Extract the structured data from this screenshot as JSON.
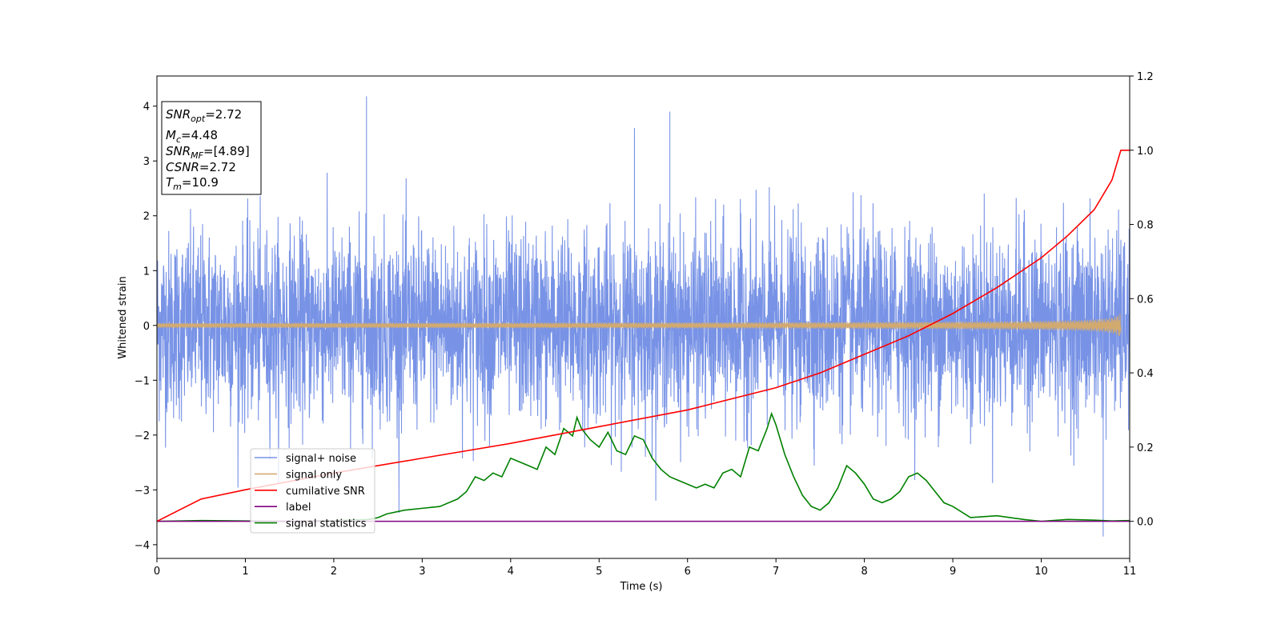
{
  "chart_data": {
    "type": "line",
    "xlabel": "Time (s)",
    "ylabel": "Whitened strain",
    "xlim": [
      0,
      11
    ],
    "ylim_left": [
      -4.25,
      4.55
    ],
    "ylim_right": [
      -0.1,
      1.2
    ],
    "x_ticks": [
      0,
      1,
      2,
      3,
      4,
      5,
      6,
      7,
      8,
      9,
      10,
      11
    ],
    "y_ticks_left": [
      -4,
      -3,
      -2,
      -1,
      0,
      1,
      2,
      3,
      4
    ],
    "y_ticks_right": [
      0.0,
      0.2,
      0.4,
      0.6,
      0.8,
      1.0,
      1.2
    ],
    "y_tick_labels_left": [
      "−4",
      "−3",
      "−2",
      "−1",
      "0",
      "1",
      "2",
      "3",
      "4"
    ],
    "y_tick_labels_right": [
      "0.0",
      "0.2",
      "0.4",
      "0.6",
      "0.8",
      "1.0",
      "1.2"
    ],
    "grid": false,
    "legend_position": "lower-left",
    "info_box": {
      "snr_opt": {
        "main": "SNR",
        "sub": "opt",
        "value": "=2.72"
      },
      "mc": {
        "main": "M",
        "sub": "c",
        "value": "=4.48"
      },
      "snr_mf": {
        "main": "SNR",
        "sub": "MF",
        "value": "=[4.89]"
      },
      "csnr": {
        "main": "CSNR",
        "sub": "",
        "value": "=2.72"
      },
      "tm": {
        "main": "T",
        "sub": "m",
        "value": "=10.9"
      }
    },
    "series": [
      {
        "name": "signal+ noise",
        "axis": "left",
        "color": "#7893e6",
        "style": "noise",
        "amplitude_std": 0.85,
        "notable_peaks": [
          {
            "x": 2.37,
            "y": 4.18
          },
          {
            "x": 5.8,
            "y": 3.9
          },
          {
            "x": 5.4,
            "y": 3.6
          },
          {
            "x": 10.7,
            "y": -3.85
          }
        ]
      },
      {
        "name": "signal only",
        "axis": "left",
        "color": "#d2aa70",
        "style": "chirp",
        "end_time": 10.9,
        "end_amplitude": 0.22
      },
      {
        "name": "cumilative SNR",
        "axis": "right",
        "color": "#ff0000",
        "x": [
          0,
          0.5,
          1,
          2,
          3,
          4,
          5,
          6,
          7,
          7.5,
          8,
          8.5,
          9,
          9.5,
          10,
          10.3,
          10.6,
          10.8,
          10.9,
          11
        ],
        "values": [
          0.0,
          0.06,
          0.085,
          0.13,
          0.17,
          0.21,
          0.255,
          0.3,
          0.36,
          0.4,
          0.45,
          0.5,
          0.56,
          0.63,
          0.71,
          0.77,
          0.84,
          0.92,
          1.0,
          1.0
        ]
      },
      {
        "name": "label",
        "axis": "right",
        "color": "#800080",
        "x": [
          0,
          11
        ],
        "values": [
          0.0,
          0.0
        ]
      },
      {
        "name": "signal statistics",
        "axis": "right",
        "color": "#008000",
        "x": [
          0,
          0.5,
          1,
          1.5,
          2,
          2.4,
          2.5,
          2.6,
          2.8,
          3,
          3.2,
          3.3,
          3.4,
          3.5,
          3.6,
          3.7,
          3.8,
          3.9,
          4.0,
          4.1,
          4.2,
          4.3,
          4.4,
          4.5,
          4.6,
          4.7,
          4.75,
          4.8,
          4.9,
          5.0,
          5.1,
          5.2,
          5.3,
          5.4,
          5.5,
          5.6,
          5.7,
          5.8,
          5.9,
          6.0,
          6.1,
          6.2,
          6.3,
          6.4,
          6.5,
          6.6,
          6.7,
          6.8,
          6.9,
          6.95,
          7.0,
          7.1,
          7.2,
          7.3,
          7.4,
          7.5,
          7.6,
          7.7,
          7.8,
          7.9,
          8.0,
          8.1,
          8.2,
          8.3,
          8.4,
          8.5,
          8.6,
          8.7,
          8.8,
          8.9,
          9.0,
          9.2,
          9.5,
          9.8,
          10.0,
          10.3,
          10.6,
          10.8,
          11.0
        ],
        "values": [
          0.0,
          0.002,
          0.001,
          0.0,
          0.002,
          0.005,
          0.01,
          0.02,
          0.03,
          0.035,
          0.04,
          0.05,
          0.06,
          0.08,
          0.12,
          0.11,
          0.13,
          0.12,
          0.17,
          0.16,
          0.15,
          0.14,
          0.2,
          0.18,
          0.25,
          0.23,
          0.28,
          0.25,
          0.22,
          0.2,
          0.24,
          0.19,
          0.18,
          0.23,
          0.22,
          0.17,
          0.14,
          0.12,
          0.11,
          0.1,
          0.09,
          0.1,
          0.09,
          0.13,
          0.14,
          0.12,
          0.2,
          0.19,
          0.25,
          0.29,
          0.26,
          0.18,
          0.12,
          0.07,
          0.04,
          0.03,
          0.05,
          0.09,
          0.15,
          0.13,
          0.1,
          0.06,
          0.05,
          0.06,
          0.08,
          0.12,
          0.13,
          0.11,
          0.08,
          0.05,
          0.04,
          0.01,
          0.015,
          0.005,
          0.0,
          0.005,
          0.003,
          0.001,
          0.002
        ]
      }
    ]
  }
}
